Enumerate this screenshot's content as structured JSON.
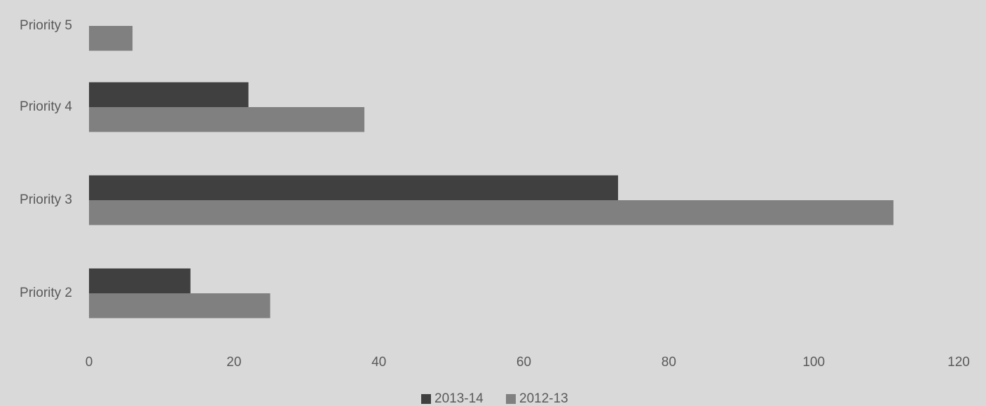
{
  "chart_data": {
    "type": "bar",
    "orientation": "horizontal",
    "categories": [
      "Priority 5",
      "Priority 4",
      "Priority 3",
      "Priority 2"
    ],
    "series": [
      {
        "name": "2013-14",
        "color": "#404040",
        "values": [
          0,
          22,
          73,
          14
        ]
      },
      {
        "name": "2012-13",
        "color": "#808080",
        "values": [
          6,
          38,
          111,
          25
        ]
      }
    ],
    "xlim": [
      0,
      120
    ],
    "xticks": [
      0,
      20,
      40,
      60,
      80,
      100,
      120
    ],
    "title": "",
    "xlabel": "",
    "ylabel": "",
    "grid": false,
    "legend": {
      "placement": "bottom-center",
      "entries": [
        "2013-14",
        "2012-13"
      ]
    }
  }
}
